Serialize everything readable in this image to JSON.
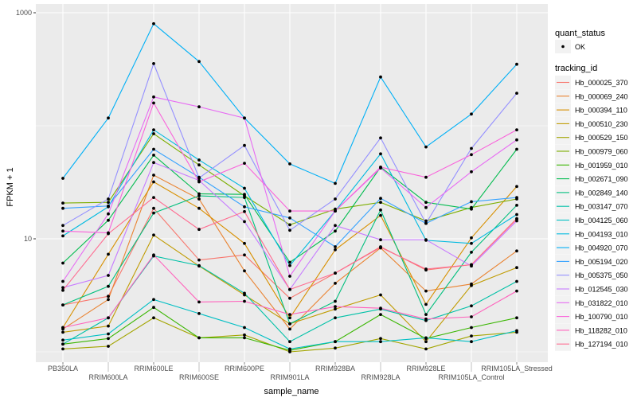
{
  "chart_data": {
    "type": "line",
    "xlabel": "sample_name",
    "ylabel": "FPKM + 1",
    "y_scale": "log10",
    "ylim": [
      0.76,
      1100
    ],
    "y_ticks": [
      10,
      1000
    ],
    "y_tick_labels": [
      "10",
      "1000"
    ],
    "grid": true,
    "legend_position": "right",
    "categories": [
      "PB350LA",
      "RRIM600LA",
      "RRIM600LE",
      "RRIM600SE",
      "RRIM600PE",
      "RRIM901LA",
      "RRIM928BA",
      "RRIM928LA",
      "RRIM928LE",
      "RRIM105LA_Control",
      "RRIM105LA_Stressed"
    ],
    "point_legend": {
      "title": "quant_status",
      "entries": [
        "OK"
      ]
    },
    "series_legend_title": "tracking_id",
    "series": [
      {
        "name": "Hb_000025_370",
        "color": "#F8766D",
        "values": [
          2.6,
          3.1,
          18.6,
          6.5,
          7.2,
          2.98,
          4.97,
          8.5,
          5.3,
          5.9,
          15.1
        ]
      },
      {
        "name": "Hb_000069_240",
        "color": "#EA8331",
        "values": [
          1.59,
          2.9,
          36.6,
          22.5,
          5.2,
          1.59,
          4.04,
          8.3,
          3.45,
          3.98,
          7.8
        ]
      },
      {
        "name": "Hb_000394_110",
        "color": "#D89000",
        "values": [
          1.64,
          7.3,
          31.9,
          18.6,
          9.1,
          2.0,
          8.0,
          16.1,
          2.63,
          10.2,
          29
        ]
      },
      {
        "name": "Hb_000510_230",
        "color": "#C09B00",
        "values": [
          1.49,
          1.69,
          10.8,
          5.74,
          3.19,
          1.77,
          2.39,
          3.19,
          1.23,
          3.86,
          5.56
        ]
      },
      {
        "name": "Hb_000529_150",
        "color": "#A3A500",
        "values": [
          1.06,
          1.12,
          2.0,
          1.33,
          1.41,
          1.0,
          1.08,
          1.31,
          1.06,
          1.38,
          1.49
        ]
      },
      {
        "name": "Hb_000979_060",
        "color": "#7CAE00",
        "values": [
          20.7,
          21,
          85,
          45,
          24,
          13.3,
          18.3,
          21,
          14.4,
          18.9,
          22.5
        ]
      },
      {
        "name": "Hb_001959_010",
        "color": "#39B600",
        "values": [
          1.17,
          1.31,
          2.47,
          1.33,
          1.33,
          1.03,
          1.23,
          2.14,
          1.31,
          1.64,
          2.0
        ]
      },
      {
        "name": "Hb_002671_090",
        "color": "#00BB4E",
        "values": [
          6.1,
          14.6,
          55,
          25,
          24.7,
          6.2,
          11.7,
          43,
          21,
          18.3,
          62
        ]
      },
      {
        "name": "Hb_002849_140",
        "color": "#00BF7D",
        "values": [
          2.6,
          3.8,
          16.9,
          24,
          23.2,
          1.77,
          2.8,
          18,
          2.14,
          7.6,
          19.8
        ]
      },
      {
        "name": "Hb_003147_070",
        "color": "#00C1A7",
        "values": [
          1.17,
          2.0,
          7.05,
          5.8,
          3.3,
          1.23,
          2.0,
          2.39,
          1.89,
          2.55,
          4.2
        ]
      },
      {
        "name": "Hb_004125_060",
        "color": "#00BFC4",
        "values": [
          1.27,
          1.44,
          2.9,
          2.18,
          1.64,
          1.06,
          1.23,
          1.23,
          1.33,
          1.23,
          1.54
        ]
      },
      {
        "name": "Hb_004193_010",
        "color": "#00BAE0",
        "values": [
          10.6,
          19.2,
          92,
          49.8,
          28,
          5.8,
          17.6,
          56.4,
          9.7,
          9.1,
          16.4
        ]
      },
      {
        "name": "Hb_004920_070",
        "color": "#00B0F6",
        "values": [
          34.3,
          117,
          800,
          370,
          117,
          46,
          30.9,
          270,
          65,
          127,
          350
        ]
      },
      {
        "name": "Hb_005194_020",
        "color": "#35A2FF",
        "values": [
          18.6,
          19.5,
          62,
          35,
          19.2,
          15.3,
          8.5,
          22.8,
          13.7,
          21.3,
          23.2
        ]
      },
      {
        "name": "Hb_005375_050",
        "color": "#9590FF",
        "values": [
          13.1,
          22.5,
          355,
          34.5,
          67,
          11.9,
          22.5,
          78,
          13.7,
          63,
          194
        ]
      },
      {
        "name": "Hb_012545_030",
        "color": "#C77CFF",
        "values": [
          3.7,
          4.74,
          47.3,
          32.9,
          14.2,
          3.56,
          13.1,
          9.8,
          9.8,
          5.74,
          14.4
        ]
      },
      {
        "name": "Hb_031822_010",
        "color": "#E76BF3",
        "values": [
          4.2,
          16.6,
          180,
          147,
          117,
          4.67,
          17.6,
          42.3,
          18.9,
          39.2,
          75
        ]
      },
      {
        "name": "Hb_100790_010",
        "color": "#FA62DB",
        "values": [
          11.7,
          11.3,
          159,
          31.9,
          46.6,
          17.6,
          17.6,
          43,
          35,
          55.5,
          92
        ]
      },
      {
        "name": "Hb_118282_010",
        "color": "#FF62BC",
        "values": [
          1.64,
          2.0,
          7.2,
          2.76,
          2.8,
          2.14,
          2.51,
          2.43,
          1.95,
          2.04,
          3.45
        ]
      },
      {
        "name": "Hb_127194_010",
        "color": "#FF6C91",
        "values": [
          3.5,
          11.1,
          23.2,
          12.1,
          17.4,
          3.56,
          4.97,
          8.4,
          5.4,
          5.9,
          14.9
        ]
      }
    ]
  }
}
